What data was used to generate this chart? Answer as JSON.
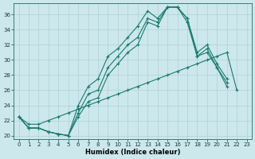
{
  "xlabel": "Humidex (Indice chaleur)",
  "bg_color": "#cce8ec",
  "grid_color": "#b0d0d4",
  "line_color": "#1a7a6e",
  "xlim": [
    -0.5,
    23.5
  ],
  "ylim": [
    19.5,
    37.5
  ],
  "yticks": [
    20,
    22,
    24,
    26,
    28,
    30,
    32,
    34,
    36
  ],
  "xticks": [
    0,
    1,
    2,
    3,
    4,
    5,
    6,
    7,
    8,
    9,
    10,
    11,
    12,
    13,
    14,
    15,
    16,
    17,
    18,
    19,
    20,
    21,
    22,
    23
  ],
  "series": [
    {
      "x": [
        0,
        1,
        2,
        3,
        4,
        5,
        6,
        7,
        8,
        9,
        10,
        11,
        12,
        13,
        14,
        15,
        16,
        17,
        18,
        19,
        20,
        21,
        22
      ],
      "y": [
        22.5,
        21.0,
        21.0,
        20.5,
        20.2,
        20.0,
        24.0,
        26.5,
        27.5,
        30.5,
        31.5,
        33.0,
        34.5,
        36.5,
        35.5,
        37.0,
        37.0,
        35.5,
        31.0,
        32.0,
        29.5,
        27.5,
        null
      ]
    },
    {
      "x": [
        0,
        1,
        2,
        3,
        4,
        5,
        6,
        7,
        8,
        9,
        10,
        11,
        12,
        13,
        14,
        15,
        16,
        17,
        18,
        19,
        20,
        21,
        22
      ],
      "y": [
        22.5,
        21.0,
        21.0,
        20.5,
        20.2,
        20.0,
        23.0,
        25.5,
        26.0,
        29.0,
        30.5,
        32.0,
        33.0,
        35.5,
        35.0,
        37.0,
        37.0,
        35.5,
        30.5,
        31.5,
        29.0,
        27.0,
        null
      ]
    },
    {
      "x": [
        0,
        1,
        2,
        3,
        4,
        5,
        6,
        7,
        8,
        9,
        10,
        11,
        12,
        13,
        14,
        15,
        16,
        17,
        18,
        19,
        20,
        21,
        22
      ],
      "y": [
        22.5,
        21.0,
        21.0,
        20.5,
        20.2,
        20.0,
        22.5,
        24.5,
        25.0,
        28.0,
        29.5,
        31.0,
        32.0,
        35.0,
        34.5,
        37.0,
        37.0,
        35.0,
        30.5,
        31.0,
        29.0,
        26.5,
        null
      ]
    },
    {
      "x": [
        0,
        1,
        2,
        3,
        4,
        5,
        6,
        7,
        8,
        9,
        10,
        11,
        12,
        13,
        14,
        15,
        16,
        17,
        18,
        19,
        20,
        21,
        22
      ],
      "y": [
        22.5,
        21.5,
        21.5,
        22.0,
        22.5,
        23.0,
        23.5,
        24.0,
        24.5,
        25.0,
        25.5,
        26.0,
        26.5,
        27.0,
        27.5,
        28.0,
        28.5,
        29.0,
        29.5,
        30.0,
        30.5,
        31.0,
        26.0
      ]
    }
  ]
}
